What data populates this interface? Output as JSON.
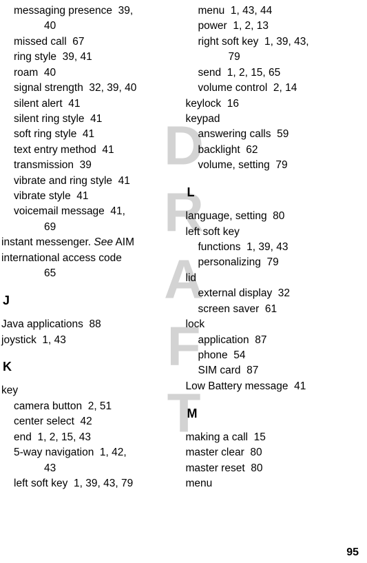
{
  "watermark": "DRAFT",
  "pageNumber": "95",
  "leftColumn": [
    {
      "type": "entry",
      "level": 1,
      "text": "messaging presence",
      "pages": "39,",
      "cont": "40"
    },
    {
      "type": "entry",
      "level": 1,
      "text": "missed call",
      "pages": "67"
    },
    {
      "type": "entry",
      "level": 1,
      "text": "ring style",
      "pages": "39, 41"
    },
    {
      "type": "entry",
      "level": 1,
      "text": "roam",
      "pages": "40"
    },
    {
      "type": "entry",
      "level": 1,
      "text": "signal strength",
      "pages": "32, 39, 40"
    },
    {
      "type": "entry",
      "level": 1,
      "text": "silent alert",
      "pages": "41"
    },
    {
      "type": "entry",
      "level": 1,
      "text": "silent ring style",
      "pages": "41"
    },
    {
      "type": "entry",
      "level": 1,
      "text": "soft ring style",
      "pages": "41"
    },
    {
      "type": "entry",
      "level": 1,
      "text": "text entry method",
      "pages": "41"
    },
    {
      "type": "entry",
      "level": 1,
      "text": "transmission",
      "pages": "39"
    },
    {
      "type": "entry",
      "level": 1,
      "text": "vibrate and ring style",
      "pages": "41"
    },
    {
      "type": "entry",
      "level": 1,
      "text": "vibrate style",
      "pages": "41"
    },
    {
      "type": "entry",
      "level": 1,
      "text": "voicemail message",
      "pages": "41,",
      "cont": "69"
    },
    {
      "type": "entry",
      "level": 0,
      "text": "instant messenger. ",
      "italicSuffix": "See",
      "suffix": " AIM"
    },
    {
      "type": "entry",
      "level": 0,
      "text": "international access code",
      "contOnly": "65"
    },
    {
      "type": "section",
      "letter": "J"
    },
    {
      "type": "entry",
      "level": 0,
      "text": "Java applications",
      "pages": "88"
    },
    {
      "type": "entry",
      "level": 0,
      "text": "joystick",
      "pages": "1, 43"
    },
    {
      "type": "section",
      "letter": "K"
    },
    {
      "type": "entry",
      "level": 0,
      "text": "key"
    },
    {
      "type": "entry",
      "level": 1,
      "text": "camera button",
      "pages": "2, 51"
    },
    {
      "type": "entry",
      "level": 1,
      "text": "center select",
      "pages": "42"
    },
    {
      "type": "entry",
      "level": 1,
      "text": "end",
      "pages": "1, 2, 15, 43"
    },
    {
      "type": "entry",
      "level": 1,
      "text": "5-way navigation",
      "pages": "1, 42,",
      "cont": "43"
    },
    {
      "type": "entry",
      "level": 1,
      "text": "left soft key",
      "pages": "1, 39, 43, 79"
    }
  ],
  "rightColumn": [
    {
      "type": "entry",
      "level": 1,
      "text": "menu",
      "pages": "1, 43, 44"
    },
    {
      "type": "entry",
      "level": 1,
      "text": "power",
      "pages": "1, 2, 13"
    },
    {
      "type": "entry",
      "level": 1,
      "text": "right soft key",
      "pages": "1, 39, 43,",
      "cont": "79"
    },
    {
      "type": "entry",
      "level": 1,
      "text": "send",
      "pages": "1, 2, 15, 65"
    },
    {
      "type": "entry",
      "level": 1,
      "text": "volume control",
      "pages": "2, 14"
    },
    {
      "type": "entry",
      "level": 0,
      "text": "keylock",
      "pages": "16"
    },
    {
      "type": "entry",
      "level": 0,
      "text": "keypad"
    },
    {
      "type": "entry",
      "level": 1,
      "text": "answering calls",
      "pages": "59"
    },
    {
      "type": "entry",
      "level": 1,
      "text": "backlight",
      "pages": "62"
    },
    {
      "type": "entry",
      "level": 1,
      "text": "volume, setting",
      "pages": "79"
    },
    {
      "type": "section",
      "letter": "L"
    },
    {
      "type": "entry",
      "level": 0,
      "text": "language, setting",
      "pages": "80"
    },
    {
      "type": "entry",
      "level": 0,
      "text": "left soft key"
    },
    {
      "type": "entry",
      "level": 1,
      "text": "functions",
      "pages": "1, 39, 43"
    },
    {
      "type": "entry",
      "level": 1,
      "text": "personalizing",
      "pages": "79"
    },
    {
      "type": "entry",
      "level": 0,
      "text": "lid"
    },
    {
      "type": "entry",
      "level": 1,
      "text": "external display",
      "pages": "32"
    },
    {
      "type": "entry",
      "level": 1,
      "text": "screen saver",
      "pages": "61"
    },
    {
      "type": "entry",
      "level": 0,
      "text": "lock"
    },
    {
      "type": "entry",
      "level": 1,
      "text": "application",
      "pages": "87"
    },
    {
      "type": "entry",
      "level": 1,
      "text": "phone",
      "pages": "54"
    },
    {
      "type": "entry",
      "level": 1,
      "text": "SIM card",
      "pages": "87"
    },
    {
      "type": "entry",
      "level": 0,
      "text": "Low Battery message",
      "pages": "41"
    },
    {
      "type": "section",
      "letter": "M"
    },
    {
      "type": "entry",
      "level": 0,
      "text": "making a call",
      "pages": "15"
    },
    {
      "type": "entry",
      "level": 0,
      "text": "master clear",
      "pages": "80"
    },
    {
      "type": "entry",
      "level": 0,
      "text": "master reset",
      "pages": "80"
    },
    {
      "type": "entry",
      "level": 0,
      "text": "menu"
    }
  ]
}
